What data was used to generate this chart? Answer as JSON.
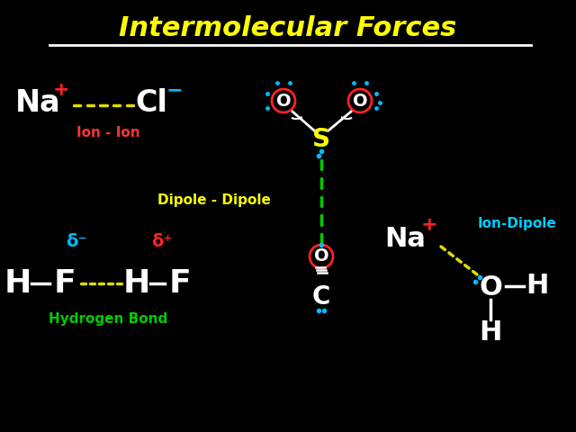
{
  "title": "Intermolecular Forces",
  "title_color": "#FFFF00",
  "title_fontsize": 22,
  "background_color": "#000000",
  "white": "#FFFFFF",
  "red": "#FF2222",
  "blue": "#4444FF",
  "cyan": "#00BBFF",
  "yellow": "#DDDD00",
  "green": "#00CC00",
  "ion_ion_label": "Ion - Ion",
  "ion_ion_color": "#FF3333",
  "dipole_dipole_label": "Dipole - Dipole",
  "dipole_dipole_color": "#FFFF00",
  "hydrogen_bond_label": "Hydrogen Bond",
  "hydrogen_bond_color": "#00CC00",
  "ion_dipole_label": "Ion-Dipole",
  "ion_dipole_color": "#00CCFF",
  "s_color": "#FFFF00"
}
